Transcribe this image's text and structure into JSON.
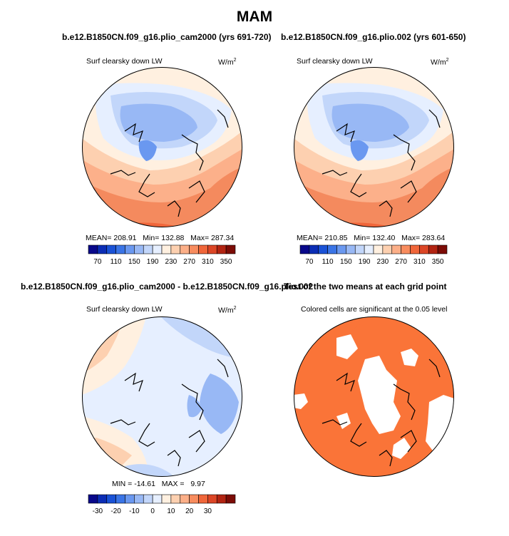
{
  "figure": {
    "title": "MAM",
    "unit_label_base": "W/m",
    "unit_label_exp": "2"
  },
  "chart_data": [
    {
      "type": "heatmap",
      "projection": "north-polar-stereographic",
      "title": "b.e12.B1850CN.f09_g16.plio_cam2000 (yrs 691-720)",
      "variable_label": "Surf clearsky down LW",
      "units": "W/m^2",
      "stats": {
        "mean_label": "MEAN=",
        "mean": "208.91",
        "min_label": "Min=",
        "min": "132.88",
        "max_label": "Max=",
        "max": "287.34"
      },
      "colorbar": {
        "levels": [
          70,
          90,
          110,
          130,
          150,
          170,
          190,
          210,
          230,
          250,
          270,
          290,
          310,
          330,
          350
        ],
        "tick_labels": [
          "70",
          "110",
          "150",
          "190",
          "230",
          "270",
          "310",
          "350"
        ],
        "colors": [
          "#08088a",
          "#0b2db5",
          "#1a52d6",
          "#3a74e6",
          "#6a98f0",
          "#98b8f5",
          "#c2d6fa",
          "#e6efff",
          "#fff0e0",
          "#fdd0b0",
          "#fcaf88",
          "#f88c5e",
          "#f0663a",
          "#dc4626",
          "#b22412",
          "#7c0c06"
        ]
      }
    },
    {
      "type": "heatmap",
      "projection": "north-polar-stereographic",
      "title": "b.e12.B1850CN.f09_g16.plio.002 (yrs 601-650)",
      "variable_label": "Surf clearsky down LW",
      "units": "W/m^2",
      "stats": {
        "mean_label": "MEAN=",
        "mean": "210.85",
        "min_label": "Min=",
        "min": "132.40",
        "max_label": "Max=",
        "max": "283.64"
      },
      "colorbar": {
        "levels": [
          70,
          90,
          110,
          130,
          150,
          170,
          190,
          210,
          230,
          250,
          270,
          290,
          310,
          330,
          350
        ],
        "tick_labels": [
          "70",
          "110",
          "150",
          "190",
          "230",
          "270",
          "310",
          "350"
        ],
        "colors": [
          "#08088a",
          "#0b2db5",
          "#1a52d6",
          "#3a74e6",
          "#6a98f0",
          "#98b8f5",
          "#c2d6fa",
          "#e6efff",
          "#fff0e0",
          "#fdd0b0",
          "#fcaf88",
          "#f88c5e",
          "#f0663a",
          "#dc4626",
          "#b22412",
          "#7c0c06"
        ]
      }
    },
    {
      "type": "heatmap",
      "projection": "north-polar-stereographic",
      "title": "b.e12.B1850CN.f09_g16.plio_cam2000 - b.e12.B1850CN.f09_g16.plio.002",
      "variable_label": "Surf clearsky down LW",
      "units": "W/m^2",
      "stats": {
        "min_label": "MIN =",
        "min": "-14.61",
        "max_label": "MAX =",
        "max": "9.97"
      },
      "colorbar": {
        "levels": [
          -35,
          -30,
          -25,
          -20,
          -15,
          -10,
          -5,
          0,
          5,
          10,
          15,
          20,
          25,
          30,
          35
        ],
        "tick_labels": [
          "-30",
          "-20",
          "-10",
          "0",
          "10",
          "20",
          "30"
        ],
        "colors": [
          "#08088a",
          "#0b2db5",
          "#1a52d6",
          "#3a74e6",
          "#6a98f0",
          "#98b8f5",
          "#c2d6fa",
          "#e6efff",
          "#fff0e0",
          "#fdd0b0",
          "#fcaf88",
          "#f88c5e",
          "#f0663a",
          "#dc4626",
          "#b22412",
          "#7c0c06"
        ]
      }
    },
    {
      "type": "heatmap",
      "projection": "north-polar-stereographic",
      "title": "T-test of the two means at each grid point",
      "title_visible": "Test of the two means at each grid point",
      "subtitle": "Colored cells are significant at the 0.05 level",
      "fill_color": "#fa7438",
      "significance_level": 0.05
    }
  ]
}
